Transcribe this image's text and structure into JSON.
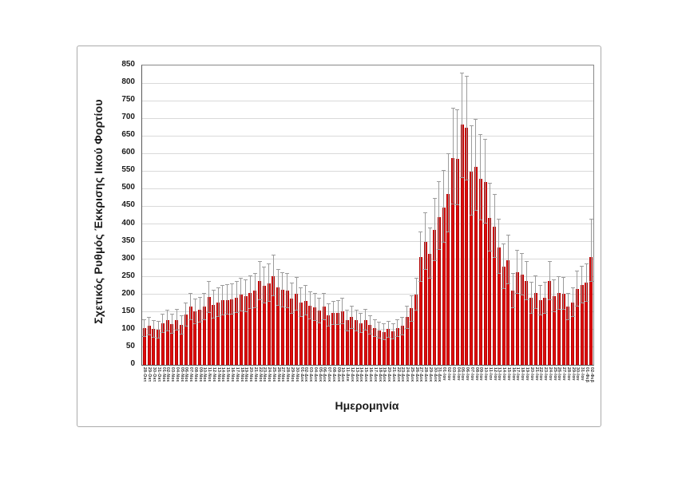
{
  "figure": {
    "y_axis_title": "Σχετικός Ρυθμός Έκκρισης Ιικού Φορτίου",
    "x_axis_title": "Ημερομηνία"
  },
  "colors": {
    "bar_fill": "#df0b0b",
    "bar_edge": "#b40000",
    "error_bar": "#9c9c9c",
    "gridline": "#d9d9d9",
    "axis_line": "#595959",
    "frame_border": "#ababab",
    "text": "#1a1a1a"
  },
  "chart_data": {
    "type": "bar",
    "title": "",
    "xlabel": "Ημερομηνία",
    "ylabel": "Σχετικός Ρυθμός Έκκρισης Ιικού Φορτίου",
    "ylim": [
      0,
      850
    ],
    "ytick_step": 50,
    "yticks": [
      0,
      50,
      100,
      150,
      200,
      250,
      300,
      350,
      400,
      450,
      500,
      550,
      600,
      650,
      700,
      750,
      800,
      850
    ],
    "grid": true,
    "legend": false,
    "error_bars": true,
    "categories": [
      "28-Οκτ",
      "29-Οκτ",
      "30-Οκτ",
      "31-Οκτ",
      "01-Νοε",
      "02-Νοε",
      "03-Νοε",
      "04-Νοε",
      "05-Νοε",
      "06-Νοε",
      "07-Νοε",
      "08-Νοε",
      "09-Νοε",
      "10-Νοε",
      "11-Νοε",
      "12-Νοε",
      "13-Νοε",
      "14-Νοε",
      "15-Νοε",
      "16-Νοε",
      "17-Νοε",
      "18-Νοε",
      "19-Νοε",
      "20-Νοε",
      "21-Νοε",
      "22-Νοε",
      "23-Νοε",
      "24-Νοε",
      "25-Νοε",
      "26-Νοε",
      "27-Νοε",
      "28-Νοε",
      "29-Νοε",
      "30-Νοε",
      "01-Δεκ",
      "02-Δεκ",
      "03-Δεκ",
      "04-Δεκ",
      "05-Δεκ",
      "06-Δεκ",
      "07-Δεκ",
      "08-Δεκ",
      "09-Δεκ",
      "10-Δεκ",
      "11-Δεκ",
      "12-Δεκ",
      "13-Δεκ",
      "14-Δεκ",
      "15-Δεκ",
      "16-Δεκ",
      "17-Δεκ",
      "18-Δεκ",
      "19-Δεκ",
      "20-Δεκ",
      "21-Δεκ",
      "22-Δεκ",
      "23-Δεκ",
      "24-Δεκ",
      "25-Δεκ",
      "26-Δεκ",
      "27-Δεκ",
      "28-Δεκ",
      "29-Δεκ",
      "30-Δεκ",
      "31-Δεκ",
      "01-Ιαν",
      "02-Ιαν",
      "03-Ιαν",
      "04-Ιαν",
      "05-Ιαν",
      "06-Ιαν",
      "07-Ιαν",
      "08-Ιαν",
      "09-Ιαν",
      "10-Ιαν",
      "11-Ιαν",
      "12-Ιαν",
      "13-Ιαν",
      "14-Ιαν",
      "15-Ιαν",
      "16-Ιαν",
      "17-Ιαν",
      "18-Ιαν",
      "19-Ιαν",
      "20-Ιαν",
      "21-Ιαν",
      "22-Ιαν",
      "23-Ιαν",
      "24-Ιαν",
      "25-Ιαν",
      "26-Ιαν",
      "27-Ιαν",
      "28-Ιαν",
      "29-Ιαν",
      "30-Ιαν",
      "31-Ιαν",
      "01-Φεβ",
      "02-Φεβ"
    ],
    "values": [
      105,
      110,
      102,
      100,
      118,
      126,
      116,
      128,
      114,
      142,
      165,
      152,
      156,
      165,
      192,
      171,
      177,
      183,
      184,
      187,
      191,
      199,
      195,
      205,
      210,
      237,
      225,
      232,
      252,
      219,
      213,
      210,
      188,
      201,
      177,
      182,
      168,
      164,
      154,
      165,
      141,
      147,
      148,
      153,
      126,
      135,
      126,
      119,
      128,
      113,
      105,
      98,
      94,
      101,
      95,
      105,
      110,
      135,
      160,
      200,
      305,
      350,
      315,
      382,
      420,
      447,
      485,
      588,
      585,
      682,
      674,
      548,
      563,
      528,
      518,
      417,
      392,
      334,
      278,
      298,
      210,
      263,
      256,
      237,
      190,
      205,
      183,
      190,
      237,
      196,
      203,
      202,
      165,
      177,
      216,
      227,
      233,
      306
    ],
    "error_hi": [
      130,
      136,
      127,
      124,
      146,
      156,
      144,
      159,
      141,
      176,
      205,
      188,
      193,
      205,
      238,
      212,
      219,
      227,
      228,
      232,
      237,
      247,
      242,
      254,
      260,
      294,
      279,
      288,
      312,
      272,
      264,
      260,
      233,
      249,
      219,
      226,
      208,
      203,
      191,
      205,
      175,
      182,
      183,
      190,
      156,
      167,
      156,
      148,
      159,
      140,
      130,
      122,
      117,
      125,
      118,
      130,
      136,
      167,
      198,
      248,
      378,
      434,
      390,
      474,
      521,
      554,
      601,
      729,
      725,
      830,
      820,
      679,
      698,
      655,
      642,
      517,
      486,
      414,
      345,
      370,
      260,
      326,
      317,
      294,
      236,
      254,
      227,
      236,
      294,
      243,
      252,
      250,
      205,
      219,
      268,
      281,
      289,
      415
    ],
    "error_lo": [
      82,
      86,
      80,
      78,
      92,
      98,
      90,
      100,
      89,
      111,
      129,
      119,
      122,
      129,
      150,
      133,
      138,
      143,
      144,
      146,
      149,
      155,
      152,
      160,
      164,
      185,
      176,
      181,
      197,
      171,
      166,
      164,
      147,
      157,
      138,
      142,
      131,
      128,
      120,
      129,
      110,
      115,
      115,
      119,
      98,
      105,
      98,
      93,
      100,
      88,
      82,
      76,
      73,
      79,
      74,
      82,
      86,
      105,
      125,
      156,
      238,
      273,
      246,
      298,
      328,
      349,
      378,
      459,
      456,
      532,
      526,
      427,
      439,
      412,
      404,
      325,
      306,
      261,
      217,
      232,
      164,
      205,
      200,
      185,
      148,
      160,
      143,
      148,
      185,
      153,
      158,
      158,
      129,
      138,
      168,
      177,
      182,
      239
    ]
  }
}
